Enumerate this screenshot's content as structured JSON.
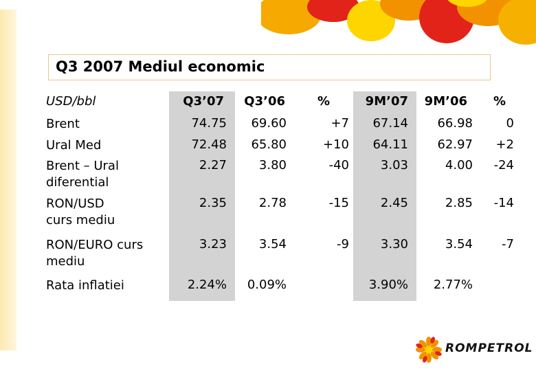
{
  "title": "Q3 2007 Mediul economic",
  "table": {
    "unit_label": "USD/bbl",
    "headers": [
      "Q3’07",
      "Q3’06",
      "%",
      "9M’07",
      "9M’06",
      "%"
    ],
    "rows": [
      {
        "label_lines": [
          "Brent"
        ],
        "values": [
          "74.75",
          "69.60",
          "+7",
          "67.14",
          "66.98",
          "0"
        ]
      },
      {
        "label_lines": [
          "Ural Med"
        ],
        "values": [
          "72.48",
          "65.80",
          "+10",
          "64.11",
          "62.97",
          "+2"
        ]
      },
      {
        "label_lines": [
          "Brent – Ural",
          "diferential"
        ],
        "values": [
          "2.27",
          "3.80",
          "-40",
          "3.03",
          "4.00",
          "-24"
        ]
      },
      {
        "label_lines": [
          "RON/USD",
          "curs mediu"
        ],
        "values": [
          "2.35",
          "2.78",
          "-15",
          "2.45",
          "2.85",
          "-14"
        ]
      },
      {
        "label_lines": [
          "RON/EURO curs",
          "mediu"
        ],
        "values": [
          "3.23",
          "3.54",
          "-9",
          "3.30",
          "3.54",
          "-7"
        ]
      },
      {
        "label_lines": [
          "Rata inflatiei"
        ],
        "values": [
          "2.24%",
          "0.09%",
          "",
          "3.90%",
          "2.77%",
          ""
        ]
      }
    ]
  },
  "brand": {
    "name": "ROMPETROL",
    "logo_icon": "rompetrol-sun-logo-icon",
    "colors": {
      "red": "#e2231a",
      "orange": "#f39200",
      "yellow": "#ffd500",
      "shade": "#d3d3d3"
    }
  }
}
